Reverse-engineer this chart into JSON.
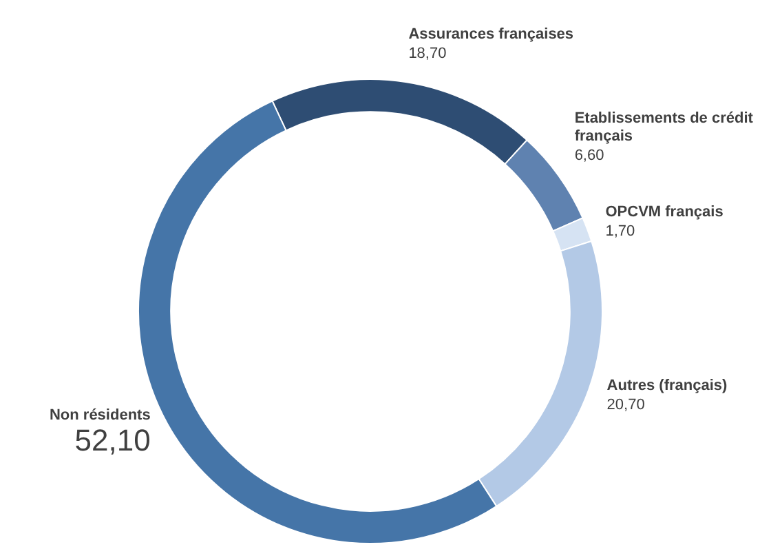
{
  "chart_data": {
    "type": "donut",
    "categories": [
      "Assurances françaises",
      "Etablissements de crédit français",
      "OPCVM français",
      "Autres (français)",
      "Non résidents"
    ],
    "values": [
      18.7,
      6.6,
      1.7,
      20.7,
      52.1
    ],
    "value_labels": [
      "18,70",
      "6,60",
      "1,70",
      "20,70",
      "52,10"
    ],
    "colors": [
      "#2e4d73",
      "#5f82b0",
      "#d6e3f3",
      "#b3c9e6",
      "#4575a8"
    ],
    "legend": false
  }
}
